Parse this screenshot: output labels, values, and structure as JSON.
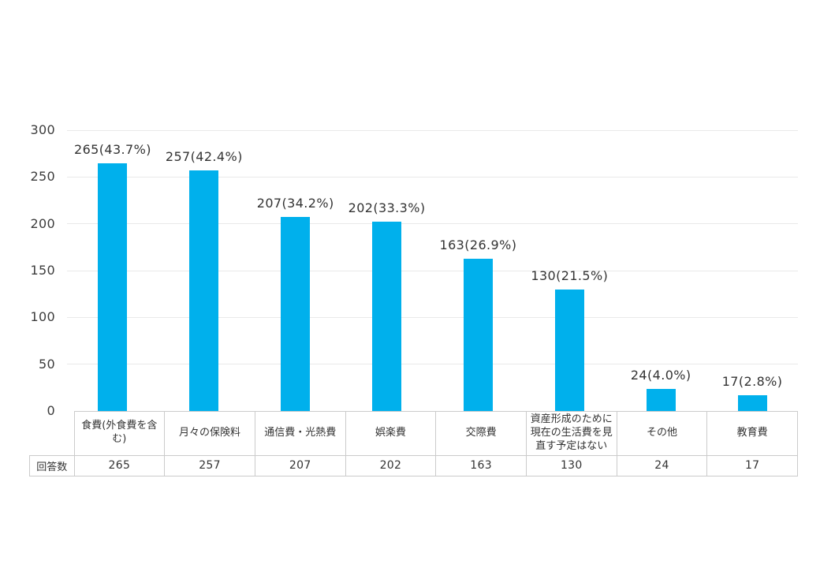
{
  "chart_data": {
    "type": "bar",
    "title": "",
    "categories": [
      "食費(外食費を含む)",
      "月々の保険料",
      "通信費・光熱費",
      "娯楽費",
      "交際費",
      "資産形成のために現在の生活費を見直す予定はない",
      "その他",
      "教育費"
    ],
    "values": [
      265,
      257,
      207,
      202,
      163,
      130,
      24,
      17
    ],
    "percentages": [
      43.7,
      42.4,
      34.2,
      33.3,
      26.9,
      21.5,
      4.0,
      2.8
    ],
    "bar_labels": [
      "265(43.7%)",
      "257(42.4%)",
      "207(34.2%)",
      "202(33.3%)",
      "163(26.9%)",
      "130(21.5%)",
      "24(4.0%)",
      "17(2.8%)"
    ],
    "ylim": [
      0,
      300
    ],
    "yticks": [
      0,
      50,
      100,
      150,
      200,
      250,
      300
    ],
    "grid": true,
    "legend": "none",
    "bar_color": "#00b0ec",
    "gridline_color": "#e9e9e9",
    "table": {
      "row_header": "回答数",
      "row_values": [
        "265",
        "257",
        "207",
        "202",
        "163",
        "130",
        "24",
        "17"
      ]
    }
  }
}
